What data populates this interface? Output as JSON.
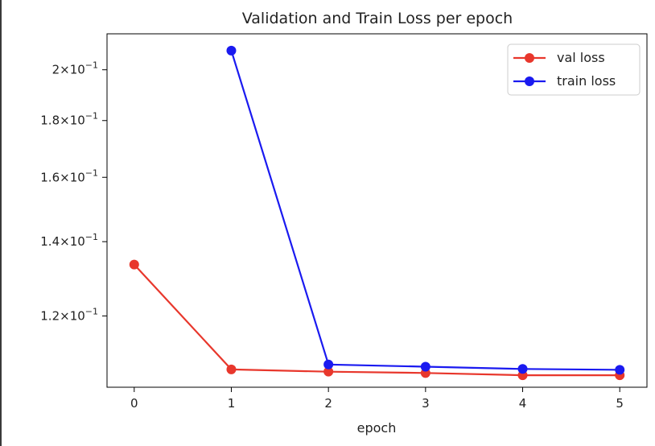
{
  "chart_data": {
    "type": "line",
    "title": "Validation and Train Loss per epoch",
    "xlabel": "epoch",
    "ylabel": "",
    "yscale": "log",
    "xlim": [
      -0.28,
      5.28
    ],
    "ylim": [
      0.1035,
      0.2155
    ],
    "x_ticks": [
      0,
      1,
      2,
      3,
      4,
      5
    ],
    "y_ticks": [
      {
        "value": 0.12,
        "mantissa": "1.2",
        "base": "10",
        "exp": "−1"
      },
      {
        "value": 0.14,
        "mantissa": "1.4",
        "base": "10",
        "exp": "−1"
      },
      {
        "value": 0.16,
        "mantissa": "1.6",
        "base": "10",
        "exp": "−1"
      },
      {
        "value": 0.18,
        "mantissa": "1.8",
        "base": "10",
        "exp": "−1"
      },
      {
        "value": 0.2,
        "mantissa": "2",
        "base": "10",
        "exp": "−1"
      }
    ],
    "grid": false,
    "legend_position": "top-right",
    "series": [
      {
        "name": "val loss",
        "color": "#e8372c",
        "x": [
          0,
          1,
          2,
          3,
          4,
          5
        ],
        "y": [
          0.1335,
          0.1074,
          0.1069,
          0.1066,
          0.1061,
          0.1061
        ]
      },
      {
        "name": "train loss",
        "color": "#1a1af0",
        "x": [
          1,
          2,
          3,
          4,
          5
        ],
        "y": [
          0.2081,
          0.1085,
          0.108,
          0.1075,
          0.1073
        ]
      }
    ]
  }
}
